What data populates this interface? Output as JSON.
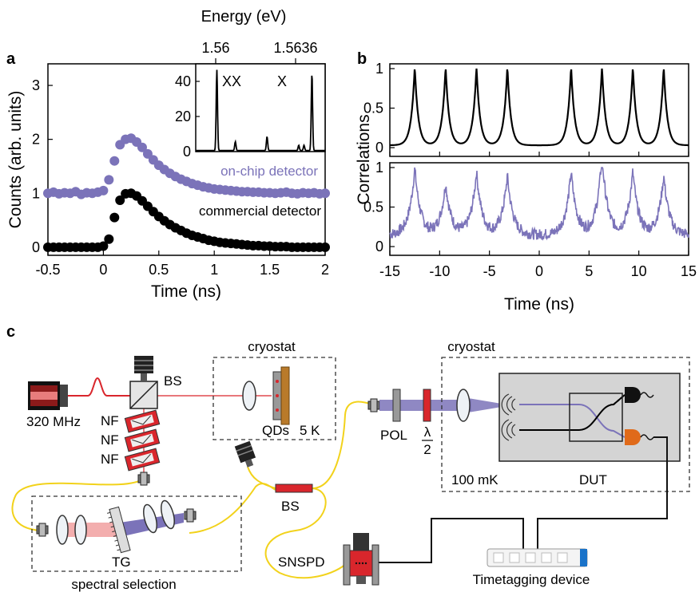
{
  "panels": {
    "a": "a",
    "b": "b",
    "c": "c"
  },
  "chart_data": [
    {
      "panel": "a",
      "type": "scatter",
      "xlabel": "Time (ns)",
      "ylabel": "Counts (arb. units)",
      "xlim": [
        -0.5,
        2
      ],
      "ylim": [
        -0.15,
        3.4
      ],
      "xticks": [
        "-0.5",
        "0",
        "0.5",
        "1",
        "1.5",
        "2"
      ],
      "yticks": [
        "0",
        "1",
        "2",
        "3"
      ],
      "series": [
        {
          "name": "on-chip detector",
          "color": "#7b73b9",
          "offset": 1,
          "x": [
            -0.5,
            -0.45,
            -0.4,
            -0.35,
            -0.3,
            -0.25,
            -0.2,
            -0.15,
            -0.1,
            -0.05,
            0,
            0.05,
            0.1,
            0.15,
            0.2,
            0.25,
            0.3,
            0.35,
            0.4,
            0.45,
            0.5,
            0.55,
            0.6,
            0.65,
            0.7,
            0.75,
            0.8,
            0.85,
            0.9,
            0.95,
            1,
            1.05,
            1.1,
            1.15,
            1.2,
            1.25,
            1.3,
            1.35,
            1.4,
            1.45,
            1.5,
            1.55,
            1.6,
            1.65,
            1.7,
            1.75,
            1.8,
            1.85,
            1.9,
            1.95,
            2
          ],
          "y": [
            1.0,
            1.02,
            0.99,
            1.01,
            1.0,
            1.03,
            0.98,
            1.01,
            1.0,
            1.02,
            1.05,
            1.25,
            1.6,
            1.9,
            2.0,
            2.02,
            1.95,
            1.85,
            1.73,
            1.62,
            1.52,
            1.44,
            1.37,
            1.31,
            1.26,
            1.22,
            1.18,
            1.15,
            1.12,
            1.1,
            1.08,
            1.07,
            1.06,
            1.05,
            1.04,
            1.03,
            1.03,
            1.02,
            1.02,
            1.01,
            1.01,
            1.0,
            1.01,
            1.02,
            1.0,
            0.99,
            1.01,
            1.0,
            1.01,
            0.99,
            1.0
          ]
        },
        {
          "name": "commercial detector",
          "color": "#000000",
          "offset": 0,
          "x": [
            -0.5,
            -0.45,
            -0.4,
            -0.35,
            -0.3,
            -0.25,
            -0.2,
            -0.15,
            -0.1,
            -0.05,
            0,
            0.05,
            0.1,
            0.15,
            0.2,
            0.25,
            0.3,
            0.35,
            0.4,
            0.45,
            0.5,
            0.55,
            0.6,
            0.65,
            0.7,
            0.75,
            0.8,
            0.85,
            0.9,
            0.95,
            1,
            1.05,
            1.1,
            1.15,
            1.2,
            1.25,
            1.3,
            1.35,
            1.4,
            1.45,
            1.5,
            1.55,
            1.6,
            1.65,
            1.7,
            1.75,
            1.8,
            1.85,
            1.9,
            1.95,
            2
          ],
          "y": [
            0,
            0,
            0,
            0,
            0,
            0,
            0,
            0,
            0,
            0,
            0.02,
            0.15,
            0.55,
            0.87,
            0.99,
            1.0,
            0.95,
            0.86,
            0.76,
            0.66,
            0.57,
            0.49,
            0.42,
            0.36,
            0.31,
            0.26,
            0.22,
            0.19,
            0.16,
            0.13,
            0.11,
            0.09,
            0.08,
            0.07,
            0.06,
            0.05,
            0.04,
            0.03,
            0.03,
            0.02,
            0.02,
            0.01,
            0.01,
            0.01,
            0,
            0,
            0,
            0,
            0,
            0,
            0
          ]
        }
      ],
      "inset": {
        "type": "line",
        "top_axis_label": "Energy (eV)",
        "top_ticks": [
          "1.56",
          "1.5636"
        ],
        "yticks": [
          "0",
          "20",
          "40"
        ],
        "ylim": [
          0,
          50
        ],
        "annotations": [
          "XX",
          "X"
        ],
        "peaks": [
          {
            "x": 1.56,
            "h": 46
          },
          {
            "x": 1.5607,
            "h": 5
          },
          {
            "x": 1.5619,
            "h": 8
          },
          {
            "x": 1.5631,
            "h": 3
          },
          {
            "x": 1.5633,
            "h": 3
          },
          {
            "x": 1.5636,
            "h": 44
          }
        ],
        "xlim": [
          1.5592,
          1.5641
        ]
      }
    },
    {
      "panel": "b",
      "type": "line",
      "xlabel": "Time (ns)",
      "ylabel": "Correlations",
      "xlim": [
        -15,
        15
      ],
      "xticks": [
        "-15",
        "-10",
        "-5",
        "0",
        "5",
        "10",
        "15"
      ],
      "top": {
        "yticks": [
          "0",
          "0.5",
          "1"
        ],
        "color": "#000000",
        "peak_centers": [
          -12.5,
          -9.4,
          -6.3,
          -3.2,
          3.2,
          6.3,
          9.4,
          12.5
        ],
        "peak_heights": [
          1,
          1,
          1,
          1,
          1,
          1,
          1,
          1
        ],
        "baseline": 0.03
      },
      "bottom": {
        "yticks": [
          "0",
          "0.5",
          "1"
        ],
        "color": "#7b73b9",
        "peak_centers": [
          -12.5,
          -9.4,
          -6.3,
          -3.2,
          3.2,
          6.3,
          9.4,
          12.5
        ],
        "peak_heights": [
          0.85,
          0.65,
          0.8,
          0.75,
          0.8,
          1.0,
          0.8,
          0.75
        ],
        "baseline": 0.15
      }
    }
  ],
  "setup": {
    "labels": {
      "laser_rate": "320 MHz",
      "bs1": "BS",
      "nf": [
        "NF",
        "NF",
        "NF"
      ],
      "cryostat1": "cryostat",
      "qds": "QDs",
      "temp1": "5 K",
      "cryostat2": "cryostat",
      "pol": "POL",
      "halfwave_top": "λ",
      "halfwave_bottom": "2",
      "temp2": "100 mK",
      "dut": "DUT",
      "bs2": "BS",
      "snspd": "SNSPD",
      "tg": "TG",
      "spectral": "spectral selection",
      "timetag": "Timetagging device"
    },
    "colors": {
      "laser": "#d9262c",
      "fiber": "#f2d21b",
      "purple": "#7b73b9",
      "detector_orange": "#e06a1a",
      "box_gray": "#d4d4d4",
      "timetag_blue": "#1a73c9"
    }
  }
}
